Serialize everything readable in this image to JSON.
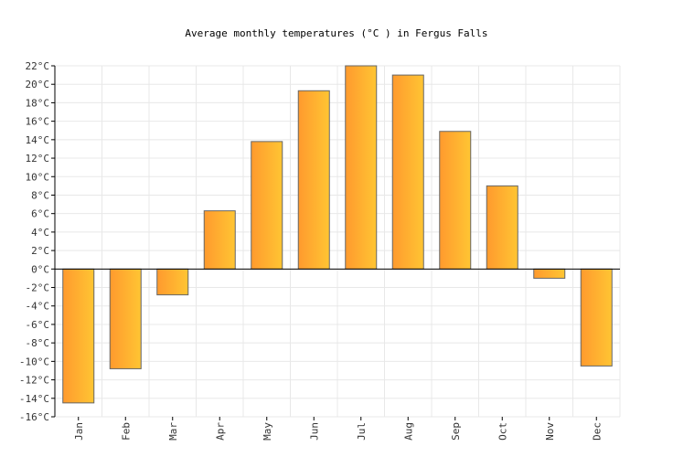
{
  "chart_data": {
    "type": "bar",
    "title": "Average monthly temperatures (°C ) in Fergus Falls",
    "categories": [
      "Jan",
      "Feb",
      "Mar",
      "Apr",
      "May",
      "Jun",
      "Jul",
      "Aug",
      "Sep",
      "Oct",
      "Nov",
      "Dec"
    ],
    "values": [
      -14.5,
      -10.8,
      -2.8,
      6.3,
      13.8,
      19.3,
      22,
      21,
      14.9,
      9,
      -1,
      -10.5
    ],
    "ylim": [
      -16,
      22
    ],
    "ytick_step": 2,
    "ytick_unit": "°C",
    "grid": true,
    "colors": {
      "bar_left": "#ff9a2e",
      "bar_right": "#ffc533",
      "bar_stroke": "#666666",
      "grid": "#e8e8e8",
      "axis": "#000000"
    }
  }
}
